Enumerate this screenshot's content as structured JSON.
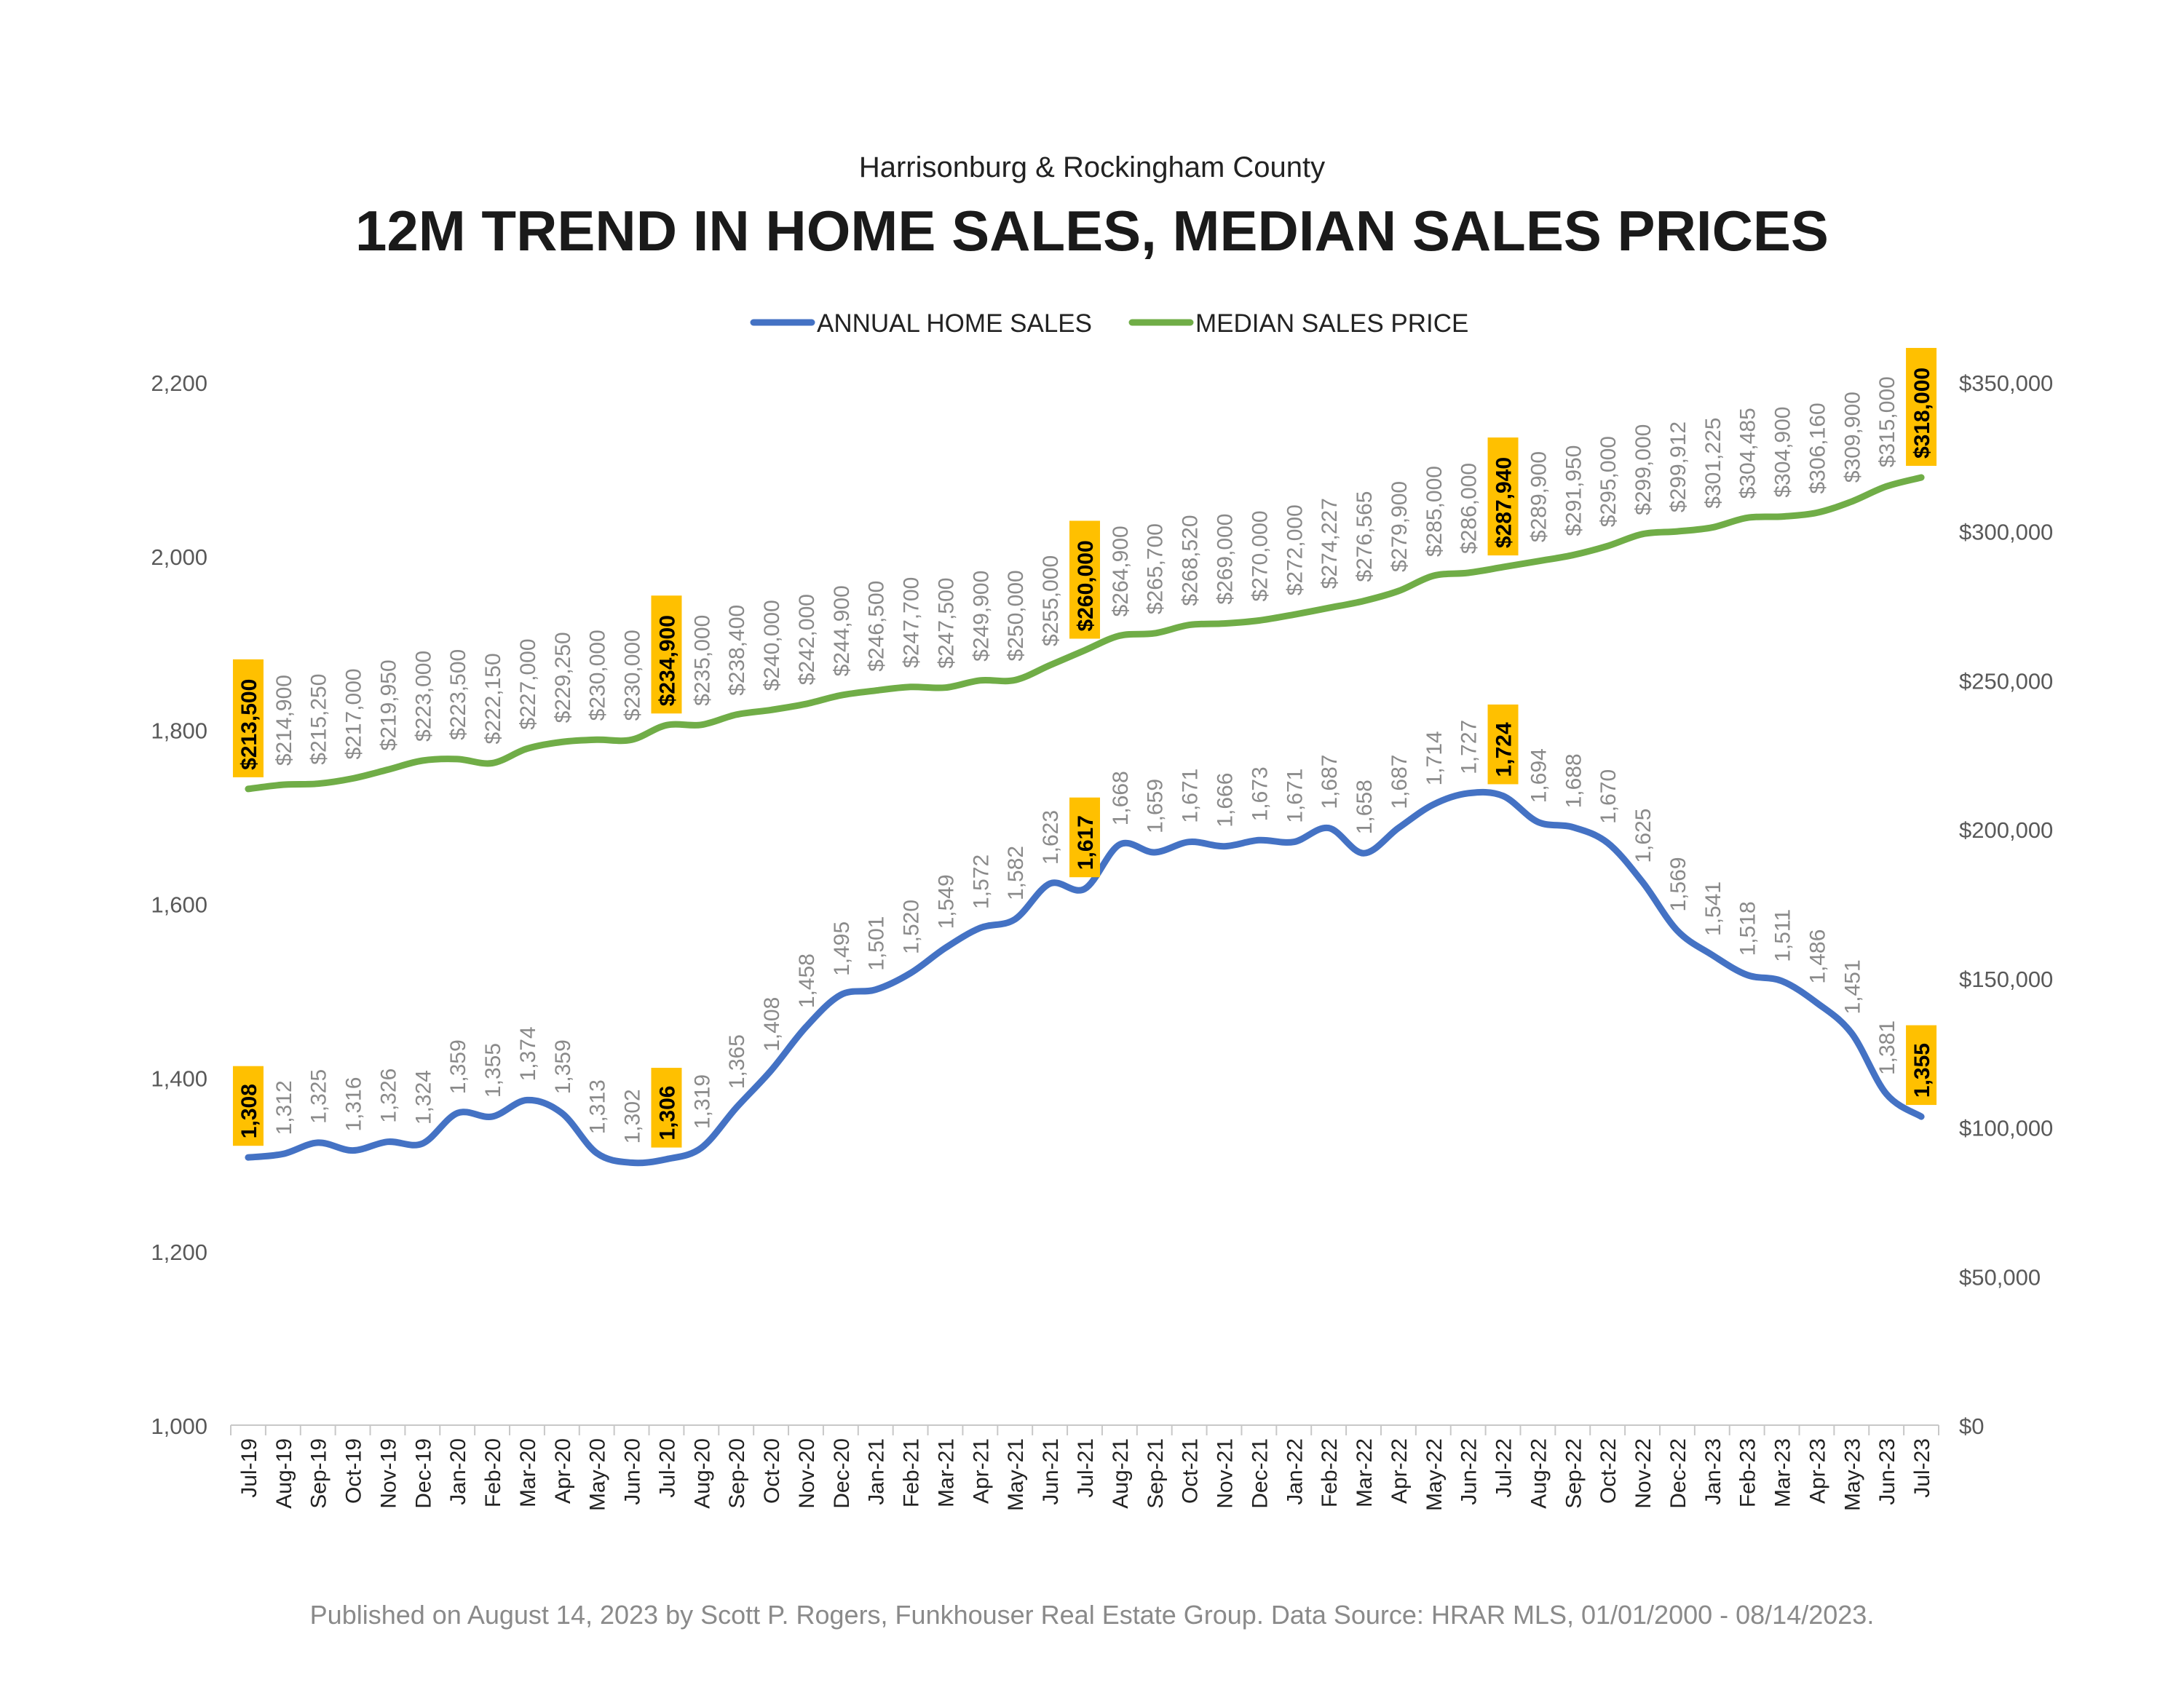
{
  "header": {
    "subtitle": "Harrisonburg & Rockingham County",
    "title": "12M TREND IN HOME SALES, MEDIAN SALES PRICES"
  },
  "footer": {
    "text": "Published on August 14, 2023 by Scott P. Rogers, Funkhouser Real Estate Group. Data Source: HRAR MLS, 01/01/2000 - 08/14/2023."
  },
  "colors": {
    "sales_line": "#4472C4",
    "price_line": "#70AD47",
    "highlight_box": "#FFC000",
    "label_text": "#8a8a8a",
    "axis_text": "#595959"
  },
  "chart_data": {
    "type": "line",
    "legend_position": "top",
    "grid": false,
    "categories": [
      "Jul-19",
      "Aug-19",
      "Sep-19",
      "Oct-19",
      "Nov-19",
      "Dec-19",
      "Jan-20",
      "Feb-20",
      "Mar-20",
      "Apr-20",
      "May-20",
      "Jun-20",
      "Jul-20",
      "Aug-20",
      "Sep-20",
      "Oct-20",
      "Nov-20",
      "Dec-20",
      "Jan-21",
      "Feb-21",
      "Mar-21",
      "Apr-21",
      "May-21",
      "Jun-21",
      "Jul-21",
      "Aug-21",
      "Sep-21",
      "Oct-21",
      "Nov-21",
      "Dec-21",
      "Jan-22",
      "Feb-22",
      "Mar-22",
      "Apr-22",
      "May-22",
      "Jun-22",
      "Jul-22",
      "Aug-22",
      "Sep-22",
      "Oct-22",
      "Nov-22",
      "Dec-22",
      "Jan-23",
      "Feb-23",
      "Mar-23",
      "Apr-23",
      "May-23",
      "Jun-23",
      "Jul-23"
    ],
    "y_left": {
      "min": 1000,
      "max": 2200,
      "ticks": [
        "1,000",
        "1,200",
        "1,400",
        "1,600",
        "1,800",
        "2,000",
        "2,200"
      ]
    },
    "y_right": {
      "min": 0,
      "max": 350000,
      "ticks": [
        "$0",
        "$50,000",
        "$100,000",
        "$150,000",
        "$200,000",
        "$250,000",
        "$300,000",
        "$350,000"
      ]
    },
    "highlight_months": [
      "Jul-19",
      "Jul-20",
      "Jul-21",
      "Jul-22",
      "Jul-23"
    ],
    "series": [
      {
        "name": "ANNUAL HOME SALES",
        "axis": "left",
        "values": [
          1308,
          1312,
          1325,
          1316,
          1326,
          1324,
          1359,
          1355,
          1374,
          1359,
          1313,
          1302,
          1306,
          1319,
          1365,
          1408,
          1458,
          1495,
          1501,
          1520,
          1549,
          1572,
          1582,
          1623,
          1617,
          1668,
          1659,
          1671,
          1666,
          1673,
          1671,
          1687,
          1658,
          1687,
          1714,
          1727,
          1724,
          1694,
          1688,
          1670,
          1625,
          1569,
          1541,
          1518,
          1511,
          1486,
          1451,
          1381,
          1355
        ],
        "labels": [
          "1,308",
          "1,312",
          "1,325",
          "1,316",
          "1,326",
          "1,324",
          "1,359",
          "1,355",
          "1,374",
          "1,359",
          "1,313",
          "1,302",
          "1,306",
          "1,319",
          "1,365",
          "1,408",
          "1,458",
          "1,495",
          "1,501",
          "1,520",
          "1,549",
          "1,572",
          "1,582",
          "1,623",
          "1,617",
          "1,668",
          "1,659",
          "1,671",
          "1,666",
          "1,673",
          "1,671",
          "1,687",
          "1,658",
          "1,687",
          "1,714",
          "1,727",
          "1,724",
          "1,694",
          "1,688",
          "1,670",
          "1,625",
          "1,569",
          "1,541",
          "1,518",
          "1,511",
          "1,486",
          "1,451",
          "1,381",
          "1,355"
        ]
      },
      {
        "name": "MEDIAN SALES PRICE",
        "axis": "right",
        "values": [
          213500,
          214900,
          215250,
          217000,
          219950,
          223000,
          223500,
          222150,
          227000,
          229250,
          230000,
          230000,
          234900,
          235000,
          238400,
          240000,
          242000,
          244900,
          246500,
          247700,
          247500,
          249900,
          250000,
          255000,
          260000,
          264900,
          265700,
          268520,
          269000,
          270000,
          272000,
          274227,
          276565,
          279900,
          285000,
          286000,
          287940,
          289900,
          291950,
          295000,
          299000,
          299912,
          301225,
          304485,
          304900,
          306160,
          309900,
          315000,
          318000
        ],
        "labels": [
          "$213,500",
          "$214,900",
          "$215,250",
          "$217,000",
          "$219,950",
          "$223,000",
          "$223,500",
          "$222,150",
          "$227,000",
          "$229,250",
          "$230,000",
          "$230,000",
          "$234,900",
          "$235,000",
          "$238,400",
          "$240,000",
          "$242,000",
          "$244,900",
          "$246,500",
          "$247,700",
          "$247,500",
          "$249,900",
          "$250,000",
          "$255,000",
          "$260,000",
          "$264,900",
          "$265,700",
          "$268,520",
          "$269,000",
          "$270,000",
          "$272,000",
          "$274,227",
          "$276,565",
          "$279,900",
          "$285,000",
          "$286,000",
          "$287,940",
          "$289,900",
          "$291,950",
          "$295,000",
          "$299,000",
          "$299,912",
          "$301,225",
          "$304,485",
          "$304,900",
          "$306,160",
          "$309,900",
          "$315,000",
          "$318,000"
        ]
      }
    ]
  }
}
